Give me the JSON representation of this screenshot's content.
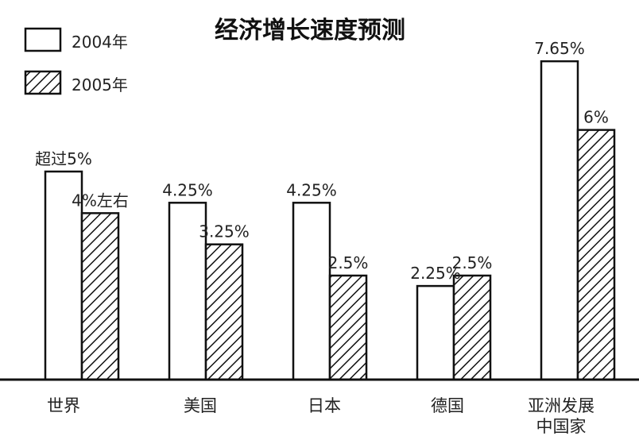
{
  "chart_data": {
    "type": "bar",
    "title": "经济增长速度预测",
    "xlabel": "",
    "ylabel": "",
    "ylim": [
      0,
      8
    ],
    "grid": false,
    "legend_position": "top-left",
    "categories": [
      "世界",
      "美国",
      "日本",
      "德国",
      "亚洲发展中国家"
    ],
    "category_labels": [
      [
        "世界"
      ],
      [
        "美国"
      ],
      [
        "日本"
      ],
      [
        "德国"
      ],
      [
        "亚洲发展",
        "中国家"
      ]
    ],
    "series": [
      {
        "name": "2004年",
        "fill": "plain",
        "values": [
          5,
          4.25,
          4.25,
          2.25,
          7.65
        ],
        "labels": [
          "超过5%",
          "4.25%",
          "4.25%",
          "2.25%",
          "7.65%"
        ]
      },
      {
        "name": "2005年",
        "fill": "hatched",
        "values": [
          4,
          3.25,
          2.5,
          2.5,
          6
        ],
        "labels": [
          "4%左右",
          "3.25%",
          "2.5%",
          "2.5%",
          "6%"
        ]
      }
    ],
    "colors": {
      "stroke": "#111111",
      "fill": "#ffffff",
      "hatch": "#111111"
    }
  }
}
